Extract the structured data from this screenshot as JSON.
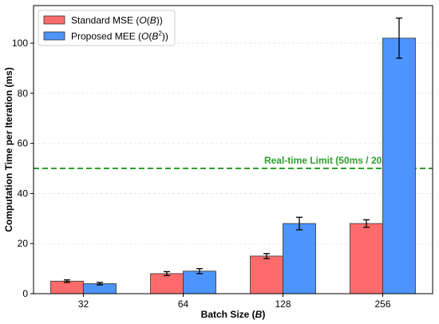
{
  "chart_data": {
    "type": "bar",
    "categories": [
      "32",
      "64",
      "128",
      "256"
    ],
    "series": [
      {
        "name": "Standard MSE (O(B))",
        "name_parts": [
          "Standard MSE (",
          "O",
          "(",
          "B",
          "))"
        ],
        "color": "#ff6b6b",
        "values": [
          5,
          8,
          15,
          28
        ],
        "errors": [
          0.5,
          0.8,
          1.0,
          1.5
        ]
      },
      {
        "name": "Proposed MEE (O(B²))",
        "name_parts": [
          "Proposed MEE (",
          "O",
          "(",
          "B",
          "2",
          "))"
        ],
        "color": "#4d94ff",
        "values": [
          4,
          9,
          28,
          102
        ],
        "errors": [
          0.5,
          1.0,
          2.5,
          8.0
        ]
      }
    ],
    "reference_line": {
      "label": "Real-time Limit (50ms / 20Hz)",
      "value": 50,
      "color": "#2ca02c",
      "style": "dashed"
    },
    "xlabel": "Batch Size (B)",
    "xlabel_parts": [
      "Batch Size (",
      "B",
      ")"
    ],
    "ylabel": "Computation Time per Iteration (ms)",
    "ylim": [
      0,
      115
    ],
    "yticks": [
      0,
      20,
      40,
      60,
      80,
      100
    ],
    "grid": "horizontal-dashed",
    "legend_position": "top-left"
  }
}
